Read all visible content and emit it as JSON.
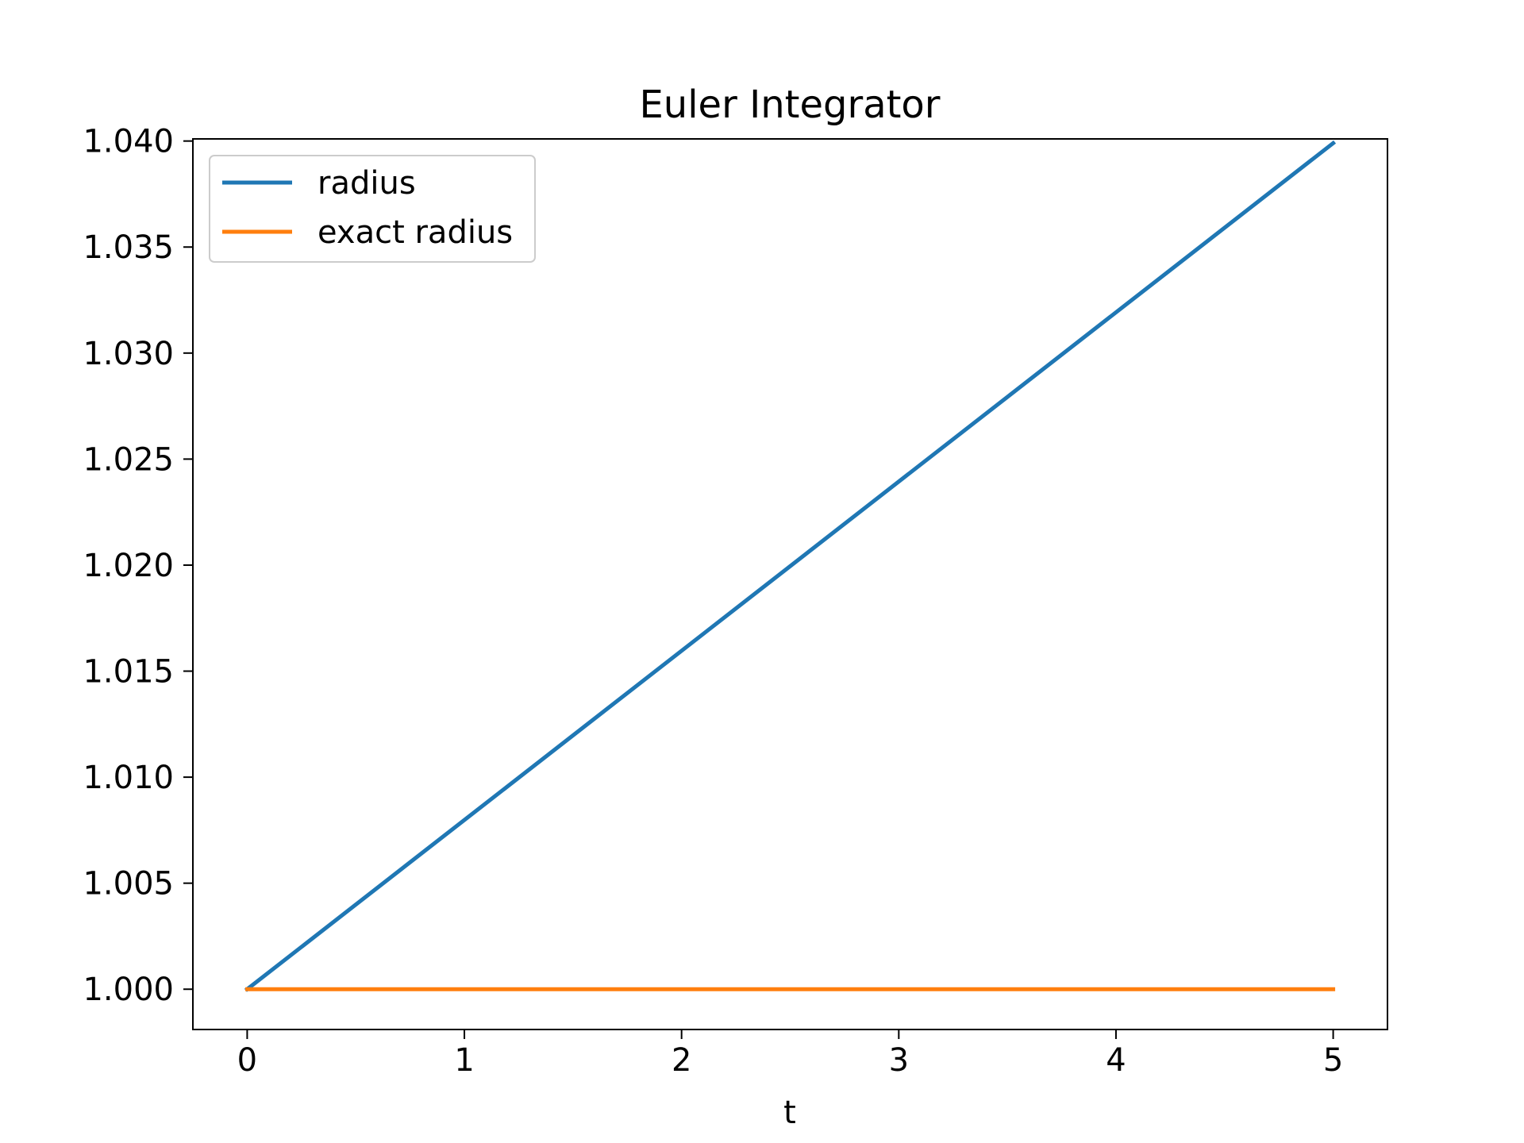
{
  "chart_data": {
    "type": "line",
    "title": "Euler Integrator",
    "xlabel": "t",
    "ylabel": "",
    "xlim": [
      -0.25,
      5.25
    ],
    "ylim": [
      0.9981,
      1.0401
    ],
    "xticks": [
      0,
      1,
      2,
      3,
      4,
      5
    ],
    "xtick_labels": [
      "0",
      "1",
      "2",
      "3",
      "4",
      "5"
    ],
    "yticks": [
      1.0,
      1.005,
      1.01,
      1.015,
      1.02,
      1.025,
      1.03,
      1.035,
      1.04
    ],
    "ytick_labels": [
      "1.000",
      "1.005",
      "1.010",
      "1.015",
      "1.020",
      "1.025",
      "1.030",
      "1.035",
      "1.040"
    ],
    "grid": false,
    "legend_position": "top-left",
    "series": [
      {
        "name": "radius",
        "color": "#1f77b4",
        "x": [
          0,
          5
        ],
        "y": [
          1.0,
          1.0399
        ]
      },
      {
        "name": "exact radius",
        "color": "#ff7f0e",
        "x": [
          0,
          5
        ],
        "y": [
          1.0,
          1.0
        ]
      }
    ]
  }
}
